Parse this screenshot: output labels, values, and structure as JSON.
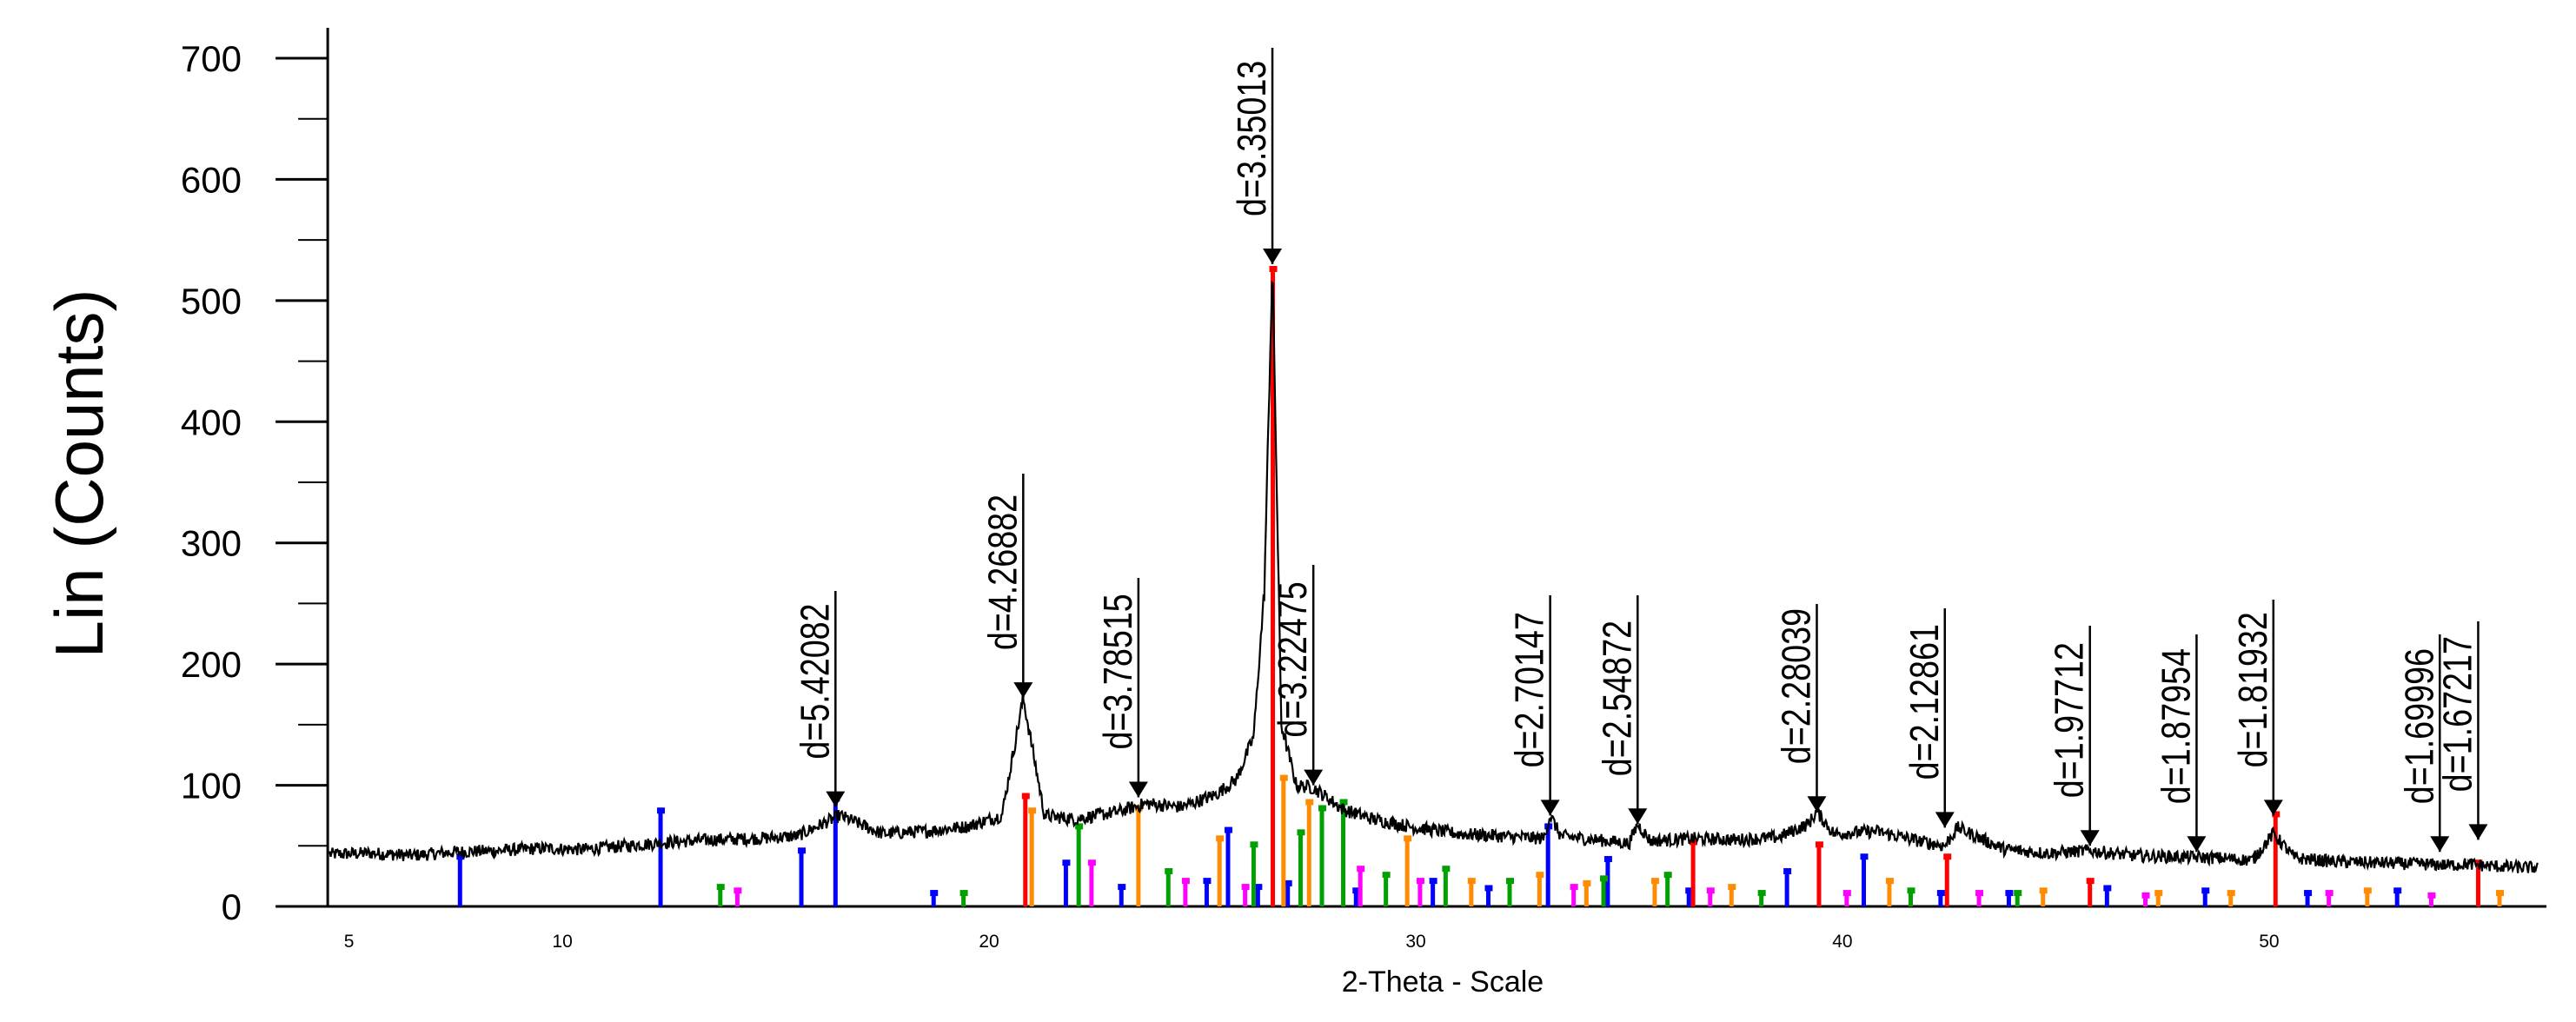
{
  "chart_data": {
    "type": "line",
    "title": "",
    "xlabel": "2-Theta - Scale",
    "ylabel": "Lin (Counts)",
    "xlim": [
      3.5,
      56.5
    ],
    "ylim": [
      0,
      700
    ],
    "xticks": [
      5,
      10,
      20,
      30,
      40,
      50
    ],
    "yticks": [
      0,
      100,
      200,
      300,
      400,
      500,
      600,
      700
    ],
    "grid": false,
    "legend": "none",
    "series": [
      {
        "x": [
          4.5,
          5.5,
          6.5,
          7.5,
          8.5,
          9.5,
          10.5,
          11.5,
          12.5,
          13.5,
          14.5,
          15.5,
          16.5,
          17.5,
          18.5,
          19.5,
          20.3,
          20.8,
          21.3,
          22.0,
          23.0,
          23.7,
          24.5,
          25.3,
          25.8,
          26.2,
          26.45,
          26.64,
          26.85,
          27.2,
          27.6,
          28.3,
          29.0,
          30.0,
          31.0,
          32.0,
          33.0,
          33.15,
          33.4,
          34.5,
          35.0,
          35.2,
          35.5,
          36.5,
          37.5,
          38.5,
          39.2,
          39.4,
          39.8,
          40.8,
          41.8,
          42.4,
          42.7,
          43.8,
          44.8,
          45.8,
          46.8,
          47.8,
          48.8,
          49.6,
          50.1,
          50.6,
          51.5,
          52.5,
          53.5,
          54.2,
          54.6,
          55.3,
          56.0
        ],
        "y": [
          43,
          44,
          42,
          45,
          46,
          48,
          47,
          50,
          53,
          55,
          56,
          58,
          75,
          60,
          62,
          66,
          75,
          172,
          75,
          72,
          78,
          85,
          82,
          92,
          105,
          140,
          260,
          530,
          150,
          100,
          98,
          80,
          72,
          65,
          60,
          58,
          56,
          75,
          58,
          54,
          52,
          68,
          54,
          56,
          55,
          57,
          68,
          78,
          60,
          62,
          54,
          50,
          65,
          47,
          44,
          46,
          42,
          41,
          40,
          38,
          60,
          40,
          37,
          36,
          35,
          34,
          35,
          33,
          32
        ]
      }
    ],
    "peak_labels": [
      {
        "x": 16.4,
        "y": 82,
        "label": "d=5.42082"
      },
      {
        "x": 20.8,
        "y": 172,
        "label": "d=4.26882"
      },
      {
        "x": 23.5,
        "y": 90,
        "label": "d=3.78515"
      },
      {
        "x": 26.64,
        "y": 530,
        "label": "d=3.35013"
      },
      {
        "x": 27.6,
        "y": 100,
        "label": "d=3.22475"
      },
      {
        "x": 33.15,
        "y": 75,
        "label": "d=2.70147"
      },
      {
        "x": 35.2,
        "y": 68,
        "label": "d=2.54872"
      },
      {
        "x": 39.4,
        "y": 78,
        "label": "d=2.28039"
      },
      {
        "x": 42.4,
        "y": 65,
        "label": "d=2.12861"
      },
      {
        "x": 45.8,
        "y": 50,
        "label": "d=1.97712"
      },
      {
        "x": 48.3,
        "y": 45,
        "label": "d=1.87954"
      },
      {
        "x": 50.1,
        "y": 75,
        "label": "d=1.81932"
      },
      {
        "x": 54.0,
        "y": 45,
        "label": "d=1.69996"
      },
      {
        "x": 54.9,
        "y": 55,
        "label": "d=1.67217"
      }
    ],
    "reference_sticks": [
      {
        "color": "#0000ff",
        "x": [
          7.6,
          12.3,
          15.6,
          16.4,
          18.7,
          21.8,
          23.1,
          25.1,
          25.6,
          26.3,
          27.0,
          28.6,
          30.4,
          31.7,
          33.1,
          34.5,
          36.4,
          38.7,
          40.5,
          42.3,
          43.9,
          46.2,
          48.5,
          50.9,
          53.0
        ],
        "y": [
          40,
          78,
          45,
          88,
          10,
          35,
          15,
          20,
          62,
          15,
          18,
          12,
          20,
          14,
          65,
          38,
          12,
          28,
          40,
          10,
          10,
          14,
          12,
          10,
          12
        ]
      },
      {
        "color": "#ff0000",
        "x": [
          20.85,
          26.65,
          36.5,
          39.45,
          42.45,
          45.8,
          50.15,
          54.9
        ],
        "y": [
          90,
          525,
          52,
          50,
          40,
          20,
          75,
          35
        ]
      },
      {
        "color": "#ff8c00",
        "x": [
          21.0,
          23.5,
          25.4,
          26.9,
          27.5,
          29.8,
          31.3,
          32.9,
          34.0,
          35.6,
          37.4,
          41.1,
          44.7,
          47.4,
          49.1,
          52.3,
          55.4
        ],
        "y": [
          78,
          80,
          55,
          105,
          85,
          55,
          20,
          25,
          18,
          20,
          15,
          20,
          12,
          10,
          10,
          12,
          10
        ]
      },
      {
        "color": "#00a000",
        "x": [
          13.7,
          19.4,
          22.1,
          24.2,
          26.2,
          27.3,
          27.8,
          28.3,
          29.3,
          30.7,
          32.2,
          34.4,
          35.9,
          38.1,
          41.6,
          44.1
        ],
        "y": [
          15,
          10,
          65,
          28,
          50,
          60,
          80,
          85,
          25,
          30,
          20,
          22,
          25,
          10,
          12,
          10
        ]
      },
      {
        "color": "#ff00ff",
        "x": [
          14.1,
          22.4,
          24.6,
          26.0,
          28.7,
          30.1,
          33.7,
          36.9,
          40.1,
          43.2,
          47.1,
          51.4,
          53.8
        ],
        "y": [
          12,
          35,
          20,
          15,
          30,
          20,
          15,
          12,
          10,
          10,
          8,
          10,
          8
        ]
      }
    ]
  }
}
